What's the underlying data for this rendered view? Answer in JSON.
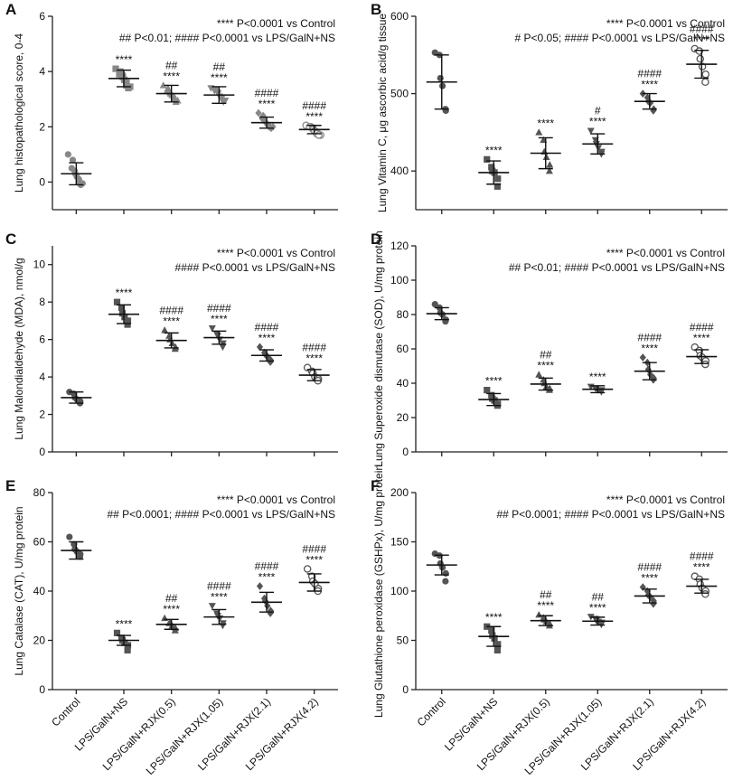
{
  "figure": {
    "categories": [
      "Control",
      "LPS/GalN+NS",
      "LPS/GalN+RJX(0.5)",
      "LPS/GalN+RJX(1.05)",
      "LPS/GalN+RJX(2.1)",
      "LPS/GalN+RJX(4.2)"
    ]
  },
  "chart_data": [
    {
      "type": "scatter",
      "panel": "A",
      "ylabel": "Lung histopathological score, 0-4",
      "ylim": [
        -1,
        6
      ],
      "yticks": [
        0,
        2,
        4,
        6
      ],
      "notes": [
        "**** P<0.0001 vs Control",
        "## P<0.01; #### P<0.0001 vs LPS/GalN+NS"
      ],
      "marker_color": "#888888",
      "means": [
        0.3,
        3.75,
        3.2,
        3.15,
        2.15,
        1.9
      ],
      "sds": [
        0.4,
        0.3,
        0.3,
        0.3,
        0.2,
        0.15
      ],
      "points": [
        [
          1.0,
          0.8,
          0.5,
          0.4,
          0.3,
          0.2,
          0.1,
          0.0,
          -0.05,
          -0.1
        ],
        [
          4.1,
          4.0,
          3.9,
          3.85,
          3.8,
          3.7,
          3.6,
          3.5,
          3.45,
          3.4
        ],
        [
          3.5,
          3.4,
          3.3,
          3.25,
          3.2,
          3.15,
          3.1,
          3.0,
          2.95,
          2.9
        ],
        [
          3.4,
          3.35,
          3.3,
          3.25,
          3.2,
          3.1,
          3.05,
          3.0,
          2.95,
          2.9
        ],
        [
          2.5,
          2.4,
          2.3,
          2.2,
          2.15,
          2.1,
          2.05,
          2.0,
          2.0,
          1.95
        ],
        [
          2.05,
          2.0,
          2.0,
          1.95,
          1.9,
          1.85,
          1.8,
          1.75,
          1.7,
          1.7
        ]
      ],
      "sig_vs_control": [
        "",
        "****",
        "****",
        "****",
        "****",
        "****"
      ],
      "sig_vs_model": [
        "",
        "",
        "##",
        "##",
        "####",
        "####"
      ]
    },
    {
      "type": "scatter",
      "panel": "B",
      "ylabel": "Lung Vitamin C, μg ascorbic acid/g tissue",
      "ylim": [
        350,
        600
      ],
      "yticks": [
        400,
        500,
        600
      ],
      "notes": [
        "**** P<0.0001 vs Control",
        "# P<0.05; #### P<0.0001 vs LPS/GalN+NS"
      ],
      "marker_color": "#555555",
      "means": [
        515,
        398,
        423,
        435,
        490,
        538
      ],
      "sds": [
        35,
        15,
        20,
        13,
        10,
        18
      ],
      "points": [
        [
          553,
          550,
          520,
          510,
          478,
          480
        ],
        [
          415,
          405,
          400,
          398,
          390,
          380
        ],
        [
          450,
          440,
          425,
          418,
          408,
          400
        ],
        [
          452,
          440,
          435,
          430,
          425,
          422
        ],
        [
          500,
          495,
          490,
          488,
          480,
          478
        ],
        [
          558,
          555,
          545,
          535,
          525,
          515
        ]
      ],
      "sig_vs_control": [
        "",
        "****",
        "****",
        "****",
        "****",
        "****"
      ],
      "sig_vs_model": [
        "",
        "",
        "",
        "#",
        "####",
        "####"
      ]
    },
    {
      "type": "scatter",
      "panel": "C",
      "ylabel": "Lung Malondialdehyde (MDA), nmol/g",
      "ylim": [
        0,
        11
      ],
      "yticks": [
        0,
        2,
        4,
        6,
        8,
        10
      ],
      "notes": [
        "**** P<0.0001 vs Control",
        "#### P<0.0001 vs LPS/GalN+NS"
      ],
      "marker_color": "#555555",
      "means": [
        2.9,
        7.35,
        5.95,
        6.1,
        5.15,
        4.1
      ],
      "sds": [
        0.3,
        0.5,
        0.4,
        0.35,
        0.3,
        0.3
      ],
      "points": [
        [
          3.2,
          3.1,
          2.9,
          2.8,
          2.7,
          2.6
        ],
        [
          8.0,
          7.7,
          7.4,
          7.2,
          7.0,
          6.8
        ],
        [
          6.5,
          6.2,
          6.0,
          5.8,
          5.6,
          5.5
        ],
        [
          6.6,
          6.3,
          6.2,
          6.0,
          5.8,
          5.6
        ],
        [
          5.6,
          5.3,
          5.2,
          5.1,
          4.9,
          4.8
        ],
        [
          4.5,
          4.3,
          4.2,
          4.0,
          3.9,
          3.8
        ]
      ],
      "sig_vs_control": [
        "",
        "****",
        "****",
        "****",
        "****",
        "****"
      ],
      "sig_vs_model": [
        "",
        "",
        "####",
        "####",
        "####",
        "####"
      ]
    },
    {
      "type": "scatter",
      "panel": "D",
      "ylabel": "Lung Superoxide dismutase (SOD), U/mg protein",
      "ylim": [
        0,
        120
      ],
      "yticks": [
        0,
        20,
        40,
        60,
        80,
        100,
        120
      ],
      "notes": [
        "**** P<0.0001 vs Control",
        "## P<0.01; #### P<0.0001 vs LPS/GalN+NS"
      ],
      "marker_color": "#555555",
      "means": [
        80.5,
        30.5,
        39.5,
        36.5,
        47,
        55.5
      ],
      "sds": [
        3.5,
        3.5,
        3.5,
        2,
        5,
        4
      ],
      "points": [
        [
          86,
          84,
          81,
          80,
          77,
          76
        ],
        [
          36,
          33,
          31,
          30,
          28,
          27
        ],
        [
          45,
          42,
          40,
          38,
          37,
          36
        ],
        [
          38,
          37,
          37,
          36,
          36,
          35
        ],
        [
          55,
          52,
          48,
          45,
          43,
          42
        ],
        [
          61,
          59,
          56,
          55,
          53,
          51
        ]
      ],
      "sig_vs_control": [
        "",
        "****",
        "****",
        "****",
        "****",
        "****"
      ],
      "sig_vs_model": [
        "",
        "",
        "##",
        "",
        "####",
        "####"
      ]
    },
    {
      "type": "scatter",
      "panel": "E",
      "ylabel": "Lung Catalase (CAT), U/mg protein",
      "ylim": [
        0,
        80
      ],
      "yticks": [
        0,
        20,
        40,
        60,
        80
      ],
      "notes": [
        "**** P<0.0001 vs Control",
        "## P<0.0001; #### P<0.0001 vs LPS/GalN+NS"
      ],
      "marker_color": "#555555",
      "means": [
        56.5,
        20,
        26.5,
        29.5,
        35.5,
        43.5
      ],
      "sds": [
        3.5,
        2,
        2,
        3,
        4,
        3.5
      ],
      "points": [
        [
          62,
          59,
          57,
          56,
          55,
          54
        ],
        [
          23,
          21,
          20,
          19,
          18,
          16
        ],
        [
          29,
          27,
          27,
          26,
          25,
          24
        ],
        [
          34,
          31,
          30,
          29,
          27,
          26
        ],
        [
          42,
          37,
          36,
          34,
          32,
          31
        ],
        [
          49,
          46,
          44,
          43,
          41,
          40
        ]
      ],
      "sig_vs_control": [
        "",
        "****",
        "****",
        "****",
        "****",
        "****"
      ],
      "sig_vs_model": [
        "",
        "",
        "##",
        "####",
        "####",
        "####"
      ]
    },
    {
      "type": "scatter",
      "panel": "F",
      "ylabel": "Lung Glutathione peroxidase (GSHPx), U/mg protein",
      "ylim": [
        0,
        200
      ],
      "yticks": [
        0,
        50,
        100,
        150,
        200
      ],
      "notes": [
        "**** P<0.0001 vs Control",
        "## P<0.0001; #### P<0.0001 vs LPS/GalN+NS"
      ],
      "marker_color": "#555555",
      "means": [
        126.5,
        54,
        70,
        69.5,
        95,
        105
      ],
      "sds": [
        10,
        10,
        5,
        4,
        7,
        7
      ],
      "points": [
        [
          138,
          136,
          128,
          124,
          118,
          110
        ],
        [
          64,
          60,
          55,
          52,
          46,
          40
        ],
        [
          76,
          73,
          71,
          69,
          67,
          65
        ],
        [
          74,
          72,
          70,
          69,
          68,
          66
        ],
        [
          104,
          100,
          96,
          94,
          90,
          87
        ],
        [
          115,
          112,
          107,
          103,
          100,
          97
        ]
      ],
      "sig_vs_control": [
        "",
        "****",
        "****",
        "****",
        "****",
        "****"
      ],
      "sig_vs_model": [
        "",
        "",
        "##",
        "##",
        "####",
        "####"
      ]
    }
  ]
}
